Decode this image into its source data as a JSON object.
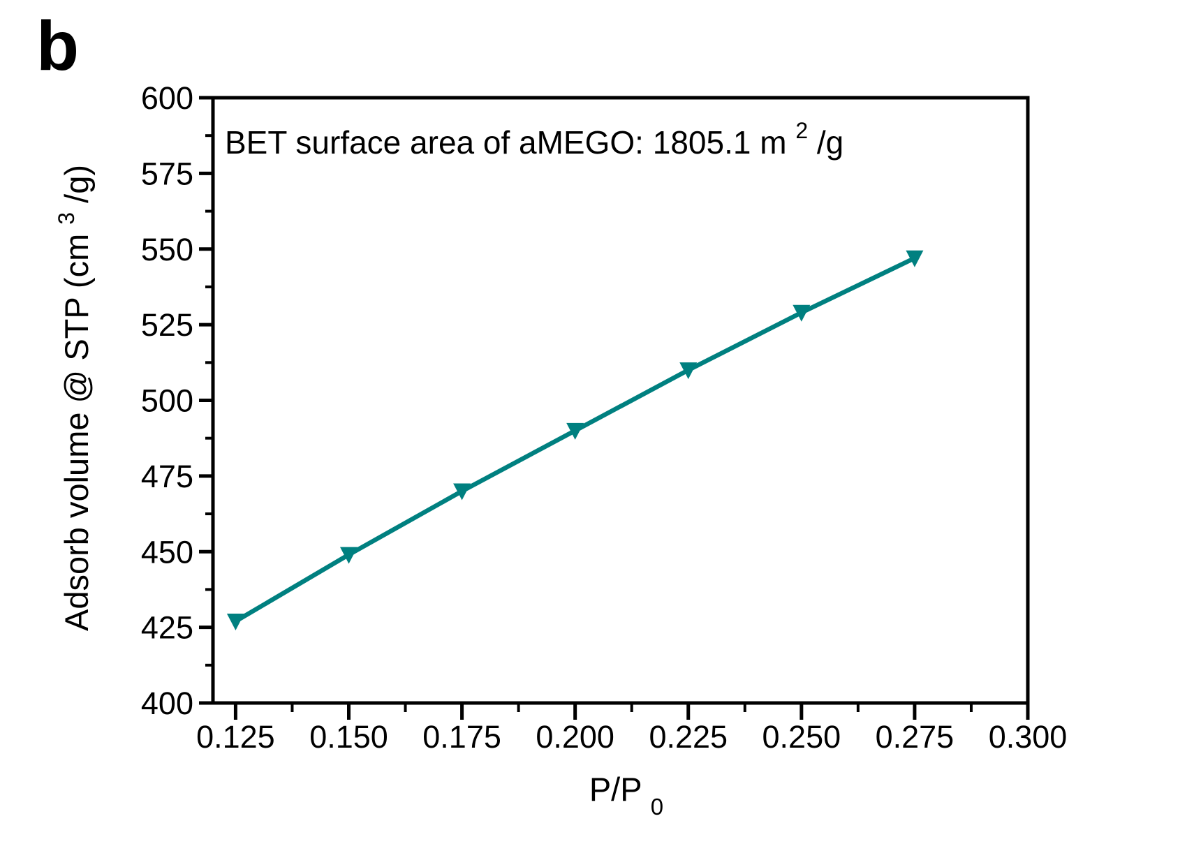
{
  "panel_label": "b",
  "chart_data": {
    "type": "line",
    "annotation": {
      "prefix": "BET surface area of aMEGO: 1805.1 m",
      "sup": "2",
      "suffix": "/g"
    },
    "xlabel": {
      "main": "P/P",
      "sub": "0"
    },
    "ylabel": {
      "prefix": "Adsorb volume @ STP (cm",
      "sup": "3",
      "suffix": "/g)"
    },
    "x": [
      0.125,
      0.15,
      0.175,
      0.2,
      0.225,
      0.25,
      0.275
    ],
    "y": [
      427,
      449,
      470,
      490,
      510,
      529,
      547
    ],
    "xlim": [
      0.12,
      0.3
    ],
    "ylim": [
      400,
      600
    ],
    "x_ticks": {
      "values": [
        0.125,
        0.15,
        0.175,
        0.2,
        0.225,
        0.25,
        0.275,
        0.3
      ],
      "labels": [
        "0.125",
        "0.150",
        "0.175",
        "0.200",
        "0.225",
        "0.250",
        "0.275",
        "0.300"
      ]
    },
    "y_ticks": {
      "values": [
        400,
        425,
        450,
        475,
        500,
        525,
        550,
        575,
        600
      ],
      "labels": [
        "400",
        "425",
        "450",
        "475",
        "500",
        "525",
        "550",
        "575",
        "600"
      ]
    },
    "grid": false,
    "legend": false,
    "line_color": "#008080",
    "marker": "triangle-down",
    "marker_color": "#008080",
    "axis_color": "#000000"
  }
}
